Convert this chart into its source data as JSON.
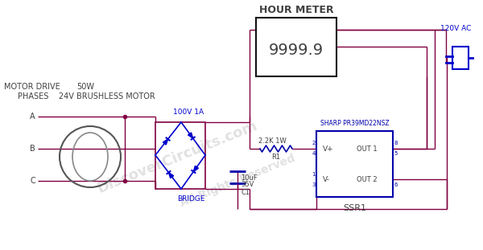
{
  "bg_color": "#ffffff",
  "wire_color": "#800040",
  "blue_color": "#0000cc",
  "dark_blue": "#0000aa",
  "text_color": "#404040",
  "title": "HOUR METER",
  "hour_value": "9999.9",
  "motor_label1": "MOTOR DRIVE",
  "motor_label2": "50W",
  "motor_label3": "PHASES    24V BRUSHLESS MOTOR",
  "bridge_label": "BRIDGE",
  "diode_label": "100V 1A",
  "resistor_label1": "2.2K 1W",
  "resistor_label2": "R1",
  "cap_label1": "10uF",
  "cap_label2": "35V",
  "cap_label3": "C1",
  "ssr_model": "SHARP PR39MD22NSZ",
  "ssr_label": "SSR1",
  "vplus_label": "V+",
  "vminus_label": "V-",
  "out1_label": "OUT 1",
  "out2_label": "OUT 2",
  "ac_label": "120V AC",
  "phase_a": "A",
  "phase_b": "B",
  "phase_c": "C",
  "watermark1": "DiscoverCircuits.com",
  "watermark2": "All Rights Reserved"
}
